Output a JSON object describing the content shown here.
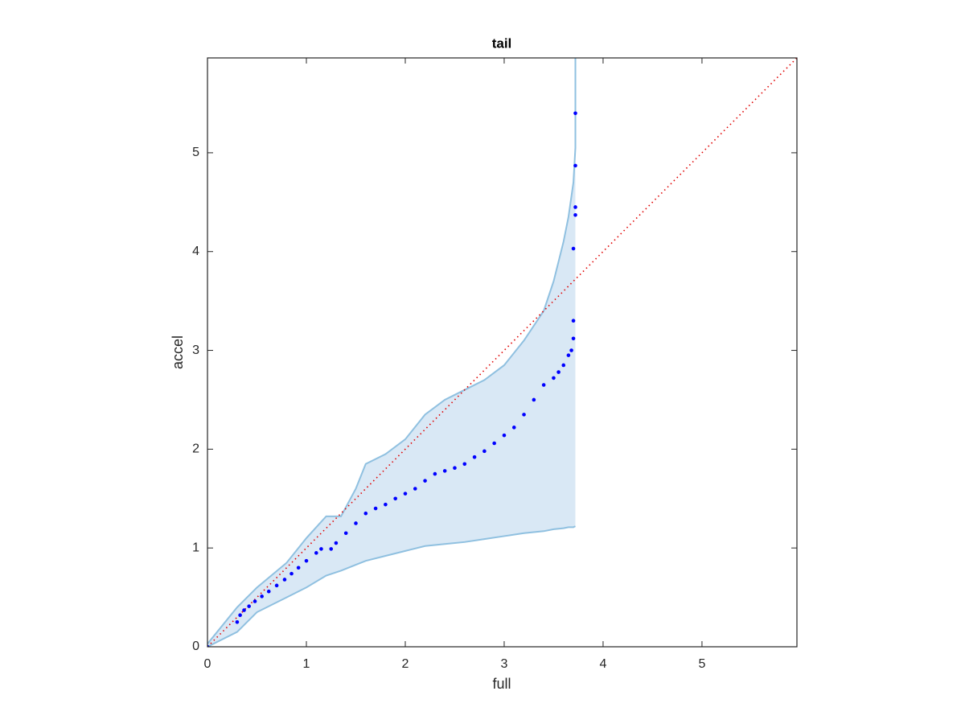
{
  "chart_data": {
    "type": "scatter",
    "title": "tail",
    "xlabel": "full",
    "ylabel": "accel",
    "xlim": [
      0,
      5.96
    ],
    "ylim": [
      0,
      5.96
    ],
    "xticks": [
      0,
      1,
      2,
      3,
      4,
      5
    ],
    "yticks": [
      0,
      1,
      2,
      3,
      4,
      5
    ],
    "series": [
      {
        "color": "#0000ff",
        "x": [
          0,
          0.3,
          0.33,
          0.37,
          0.42,
          0.48,
          0.55,
          0.62,
          0.7,
          0.78,
          0.85,
          0.92,
          1.0,
          1.1,
          1.15,
          1.25,
          1.3,
          1.4,
          1.5,
          1.6,
          1.7,
          1.8,
          1.9,
          2.0,
          2.1,
          2.2,
          2.3,
          2.4,
          2.5,
          2.6,
          2.7,
          2.8,
          2.9,
          3.0,
          3.1,
          3.2,
          3.3,
          3.4,
          3.5,
          3.55,
          3.6,
          3.65,
          3.68,
          3.7,
          3.7,
          3.7,
          3.72,
          3.72,
          3.72,
          3.72
        ],
        "values": [
          0,
          0.25,
          0.32,
          0.37,
          0.41,
          0.46,
          0.51,
          0.56,
          0.62,
          0.68,
          0.74,
          0.8,
          0.87,
          0.95,
          0.99,
          0.99,
          1.05,
          1.15,
          1.25,
          1.35,
          1.4,
          1.44,
          1.5,
          1.55,
          1.6,
          1.68,
          1.75,
          1.78,
          1.81,
          1.85,
          1.92,
          1.98,
          2.06,
          2.14,
          2.22,
          2.35,
          2.5,
          2.65,
          2.72,
          2.78,
          2.85,
          2.95,
          3.0,
          3.12,
          3.3,
          4.03,
          4.37,
          4.45,
          4.87,
          5.4
        ]
      }
    ],
    "band": {
      "color": "#d9e8f5",
      "edge_color": "#8fc0e0",
      "x": [
        0,
        0.3,
        0.5,
        0.8,
        1.0,
        1.2,
        1.35,
        1.5,
        1.6,
        1.8,
        2.0,
        2.2,
        2.4,
        2.6,
        2.8,
        3.0,
        3.2,
        3.4,
        3.5,
        3.6,
        3.65,
        3.7,
        3.72,
        3.72
      ],
      "upper": [
        0.03,
        0.4,
        0.6,
        0.85,
        1.1,
        1.32,
        1.32,
        1.6,
        1.85,
        1.95,
        2.1,
        2.35,
        2.5,
        2.6,
        2.7,
        2.85,
        3.1,
        3.4,
        3.7,
        4.1,
        4.35,
        4.7,
        5.05,
        5.96
      ],
      "lower": [
        0,
        0.15,
        0.35,
        0.5,
        0.6,
        0.72,
        0.77,
        0.83,
        0.87,
        0.92,
        0.97,
        1.02,
        1.04,
        1.06,
        1.09,
        1.12,
        1.15,
        1.17,
        1.19,
        1.2,
        1.21,
        1.21,
        1.22,
        1.22
      ]
    },
    "reference_line": {
      "color": "#e00000",
      "x": [
        0,
        5.96
      ],
      "values": [
        0,
        5.96
      ]
    }
  }
}
